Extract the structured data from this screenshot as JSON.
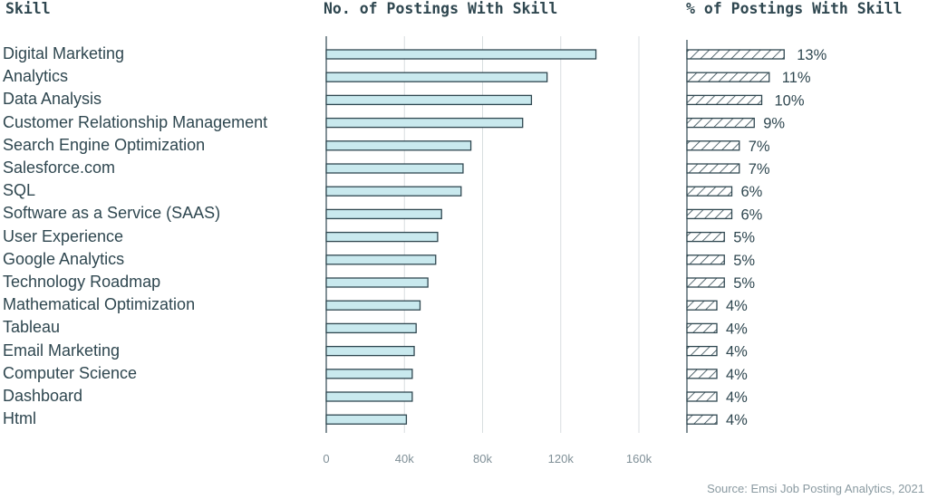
{
  "headers": {
    "skill": "Skill",
    "postings": "No. of Postings With Skill",
    "percent": "% of Postings With Skill"
  },
  "source": "Source: Emsi Job Posting Analytics, 2021",
  "colors": {
    "bar_fill": "#c9e9ee",
    "bar_stroke": "#2f4750",
    "grid": "#d9dee0",
    "text": "#2f4750"
  },
  "chart_data": [
    {
      "type": "bar",
      "orientation": "horizontal",
      "title": "No. of Postings With Skill",
      "categories": [
        "Digital Marketing",
        "Analytics",
        "Data Analysis",
        "Customer Relationship Management",
        "Search Engine Optimization",
        "Salesforce.com",
        "SQL",
        "Software as a Service (SAAS)",
        "User Experience",
        "Google Analytics",
        "Technology Roadmap",
        "Mathematical Optimization",
        "Tableau",
        "Email Marketing",
        "Computer Science",
        "Dashboard",
        "Html"
      ],
      "values": [
        138000,
        113000,
        105000,
        100500,
        74000,
        70000,
        69000,
        59000,
        57000,
        56000,
        52000,
        48000,
        46000,
        45000,
        44000,
        44000,
        41000
      ],
      "xlim": [
        0,
        160000
      ],
      "xticks": [
        0,
        40000,
        80000,
        120000,
        160000
      ],
      "xtick_labels": [
        "0",
        "40k",
        "80k",
        "120k",
        "160k"
      ],
      "grid": true
    },
    {
      "type": "bar",
      "orientation": "horizontal",
      "title": "% of Postings With Skill",
      "categories": [
        "Digital Marketing",
        "Analytics",
        "Data Analysis",
        "Customer Relationship Management",
        "Search Engine Optimization",
        "Salesforce.com",
        "SQL",
        "Software as a Service (SAAS)",
        "User Experience",
        "Google Analytics",
        "Technology Roadmap",
        "Mathematical Optimization",
        "Tableau",
        "Email Marketing",
        "Computer Science",
        "Dashboard",
        "Html"
      ],
      "values": [
        13,
        11,
        10,
        9,
        7,
        7,
        6,
        6,
        5,
        5,
        5,
        4,
        4,
        4,
        4,
        4,
        4
      ],
      "labels": [
        "13%",
        "11%",
        "10%",
        "9%",
        "7%",
        "7%",
        "6%",
        "6%",
        "5%",
        "5%",
        "5%",
        "4%",
        "4%",
        "4%",
        "4%",
        "4%",
        "4%"
      ],
      "pattern": "hatched"
    }
  ]
}
